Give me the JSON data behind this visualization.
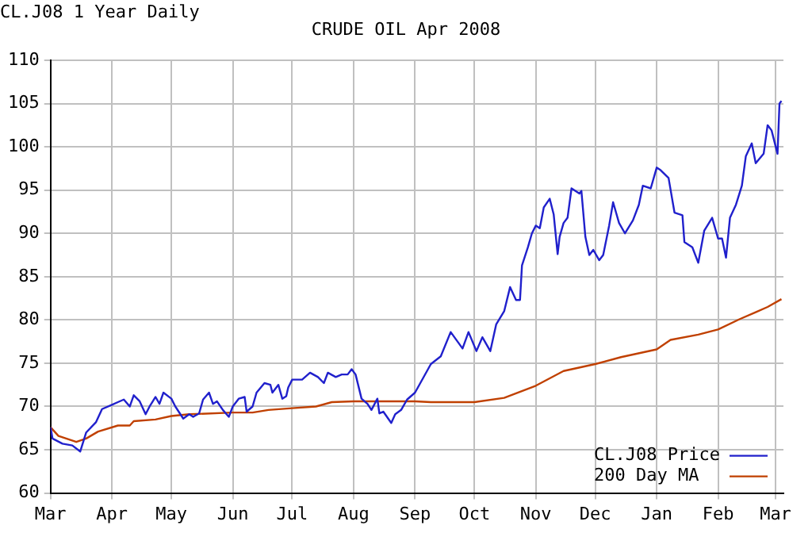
{
  "chart_data": {
    "type": "line",
    "title": "CRUDE OIL Apr 2008",
    "subtitle": "CL.J08 1 Year Daily",
    "ylim": [
      60,
      110
    ],
    "yticks": [
      60,
      65,
      70,
      75,
      80,
      85,
      90,
      95,
      100,
      105,
      110
    ],
    "xlim": [
      "2007-03-01",
      "2008-03-05"
    ],
    "xticks": [
      {
        "value": "2007-03-01",
        "label": "Mar"
      },
      {
        "value": "2007-04-01",
        "label": "Apr"
      },
      {
        "value": "2007-05-01",
        "label": "May"
      },
      {
        "value": "2007-06-01",
        "label": "Jun"
      },
      {
        "value": "2007-07-01",
        "label": "Jul"
      },
      {
        "value": "2007-08-01",
        "label": "Aug"
      },
      {
        "value": "2007-09-01",
        "label": "Sep"
      },
      {
        "value": "2007-10-01",
        "label": "Oct"
      },
      {
        "value": "2007-11-01",
        "label": "Nov"
      },
      {
        "value": "2007-12-01",
        "label": "Dec"
      },
      {
        "value": "2008-01-01",
        "label": "Jan"
      },
      {
        "value": "2008-02-01",
        "label": "Feb"
      },
      {
        "value": "2008-03-01",
        "label": "Mar"
      }
    ],
    "grid": true,
    "legend": "bottom right",
    "marker": "none",
    "line_style": "solid",
    "series": [
      {
        "name": "CL.J08 Price",
        "color": "#2020cc",
        "x": [
          "2007-03-01",
          "2007-03-02",
          "2007-03-07",
          "2007-03-12",
          "2007-03-16",
          "2007-03-19",
          "2007-03-24",
          "2007-03-27",
          "2007-04-01",
          "2007-04-04",
          "2007-04-07",
          "2007-04-10",
          "2007-04-12",
          "2007-04-15",
          "2007-04-18",
          "2007-04-20",
          "2007-04-23",
          "2007-04-25",
          "2007-04-27",
          "2007-05-01",
          "2007-05-03",
          "2007-05-07",
          "2007-05-10",
          "2007-05-12",
          "2007-05-15",
          "2007-05-17",
          "2007-05-20",
          "2007-05-22",
          "2007-05-24",
          "2007-05-27",
          "2007-05-30",
          "2007-06-01",
          "2007-06-04",
          "2007-06-07",
          "2007-06-08",
          "2007-06-11",
          "2007-06-13",
          "2007-06-17",
          "2007-06-20",
          "2007-06-21",
          "2007-06-24",
          "2007-06-26",
          "2007-06-28",
          "2007-06-29",
          "2007-07-01",
          "2007-07-06",
          "2007-07-10",
          "2007-07-14",
          "2007-07-17",
          "2007-07-19",
          "2007-07-23",
          "2007-07-26",
          "2007-07-29",
          "2007-07-31",
          "2007-08-02",
          "2007-08-05",
          "2007-08-08",
          "2007-08-10",
          "2007-08-13",
          "2007-08-14",
          "2007-08-16",
          "2007-08-20",
          "2007-08-22",
          "2007-08-25",
          "2007-08-28",
          "2007-09-01",
          "2007-09-09",
          "2007-09-14",
          "2007-09-19",
          "2007-09-25",
          "2007-09-28",
          "2007-10-02",
          "2007-10-05",
          "2007-10-09",
          "2007-10-12",
          "2007-10-16",
          "2007-10-19",
          "2007-10-22",
          "2007-10-24",
          "2007-10-25",
          "2007-10-28",
          "2007-10-30",
          "2007-11-01",
          "2007-11-03",
          "2007-11-05",
          "2007-11-08",
          "2007-11-10",
          "2007-11-12",
          "2007-11-13",
          "2007-11-15",
          "2007-11-17",
          "2007-11-19",
          "2007-11-23",
          "2007-11-24",
          "2007-11-26",
          "2007-11-28",
          "2007-11-30",
          "2007-12-03",
          "2007-12-05",
          "2007-12-08",
          "2007-12-10",
          "2007-12-13",
          "2007-12-16",
          "2007-12-20",
          "2007-12-23",
          "2007-12-25",
          "2007-12-29",
          "2008-01-01",
          "2008-01-03",
          "2008-01-07",
          "2008-01-10",
          "2008-01-14",
          "2008-01-15",
          "2008-01-19",
          "2008-01-22",
          "2008-01-25",
          "2008-01-29",
          "2008-02-01",
          "2008-02-03",
          "2008-02-05",
          "2008-02-07",
          "2008-02-10",
          "2008-02-13",
          "2008-02-15",
          "2008-02-18",
          "2008-02-20",
          "2008-02-24",
          "2008-02-26",
          "2008-02-28",
          "2008-03-02",
          "2008-03-03",
          "2008-03-04"
        ],
        "values": [
          67.6,
          66.3,
          65.7,
          65.5,
          64.8,
          67,
          68.2,
          69.7,
          70.2,
          70.5,
          70.8,
          70,
          71.3,
          70.6,
          69.1,
          70,
          71.1,
          70.3,
          71.6,
          70.9,
          70,
          68.6,
          69.1,
          68.8,
          69.2,
          70.8,
          71.6,
          70.3,
          70.6,
          69.6,
          68.8,
          70,
          70.9,
          71.1,
          69.4,
          70,
          71.6,
          72.7,
          72.5,
          71.6,
          72.5,
          70.9,
          71.2,
          72.2,
          73.1,
          73.1,
          73.9,
          73.4,
          72.7,
          73.9,
          73.4,
          73.7,
          73.7,
          74.3,
          73.7,
          70.9,
          70.3,
          69.6,
          70.9,
          69.2,
          69.4,
          68.1,
          69.1,
          69.6,
          70.8,
          71.6,
          74.9,
          75.8,
          78.6,
          76.7,
          78.6,
          76.4,
          78,
          76.4,
          79.5,
          81,
          83.8,
          82.3,
          82.3,
          86.3,
          88.4,
          90,
          90.9,
          90.6,
          93,
          94,
          92.2,
          87.6,
          89.6,
          91.2,
          91.8,
          95.2,
          94.6,
          94.9,
          89.6,
          87.5,
          88.1,
          86.9,
          87.5,
          90.9,
          93.6,
          91.2,
          90,
          91.5,
          93.3,
          95.5,
          95.2,
          97.6,
          97.3,
          96.4,
          92.4,
          92.1,
          89,
          88.4,
          86.6,
          90.3,
          91.8,
          89.4,
          89.4,
          87.2,
          91.8,
          93.3,
          95.5,
          98.9,
          100.4,
          98.1,
          99.2,
          102.5,
          101.9,
          99.2,
          105,
          105.3
        ]
      },
      {
        "name": "200 Day MA",
        "color": "#c04000",
        "x": [
          "2007-03-01",
          "2007-03-05",
          "2007-03-14",
          "2007-03-19",
          "2007-03-25",
          "2007-04-04",
          "2007-04-10",
          "2007-04-12",
          "2007-04-23",
          "2007-05-01",
          "2007-05-10",
          "2007-06-01",
          "2007-06-11",
          "2007-06-19",
          "2007-07-01",
          "2007-07-13",
          "2007-07-21",
          "2007-08-01",
          "2007-09-01",
          "2007-09-09",
          "2007-10-01",
          "2007-10-16",
          "2007-11-01",
          "2007-11-15",
          "2007-12-01",
          "2007-12-14",
          "2008-01-01",
          "2008-01-08",
          "2008-01-22",
          "2008-02-01",
          "2008-02-12",
          "2008-02-20",
          "2008-02-26",
          "2008-03-04"
        ],
        "values": [
          67.6,
          66.6,
          65.9,
          66.3,
          67.1,
          67.8,
          67.8,
          68.3,
          68.5,
          68.9,
          69.1,
          69.3,
          69.3,
          69.6,
          69.8,
          70,
          70.5,
          70.6,
          70.6,
          70.5,
          70.5,
          71,
          72.4,
          74.1,
          74.9,
          75.7,
          76.6,
          77.7,
          78.3,
          78.9,
          80.1,
          80.9,
          81.5,
          82.4
        ]
      }
    ]
  }
}
